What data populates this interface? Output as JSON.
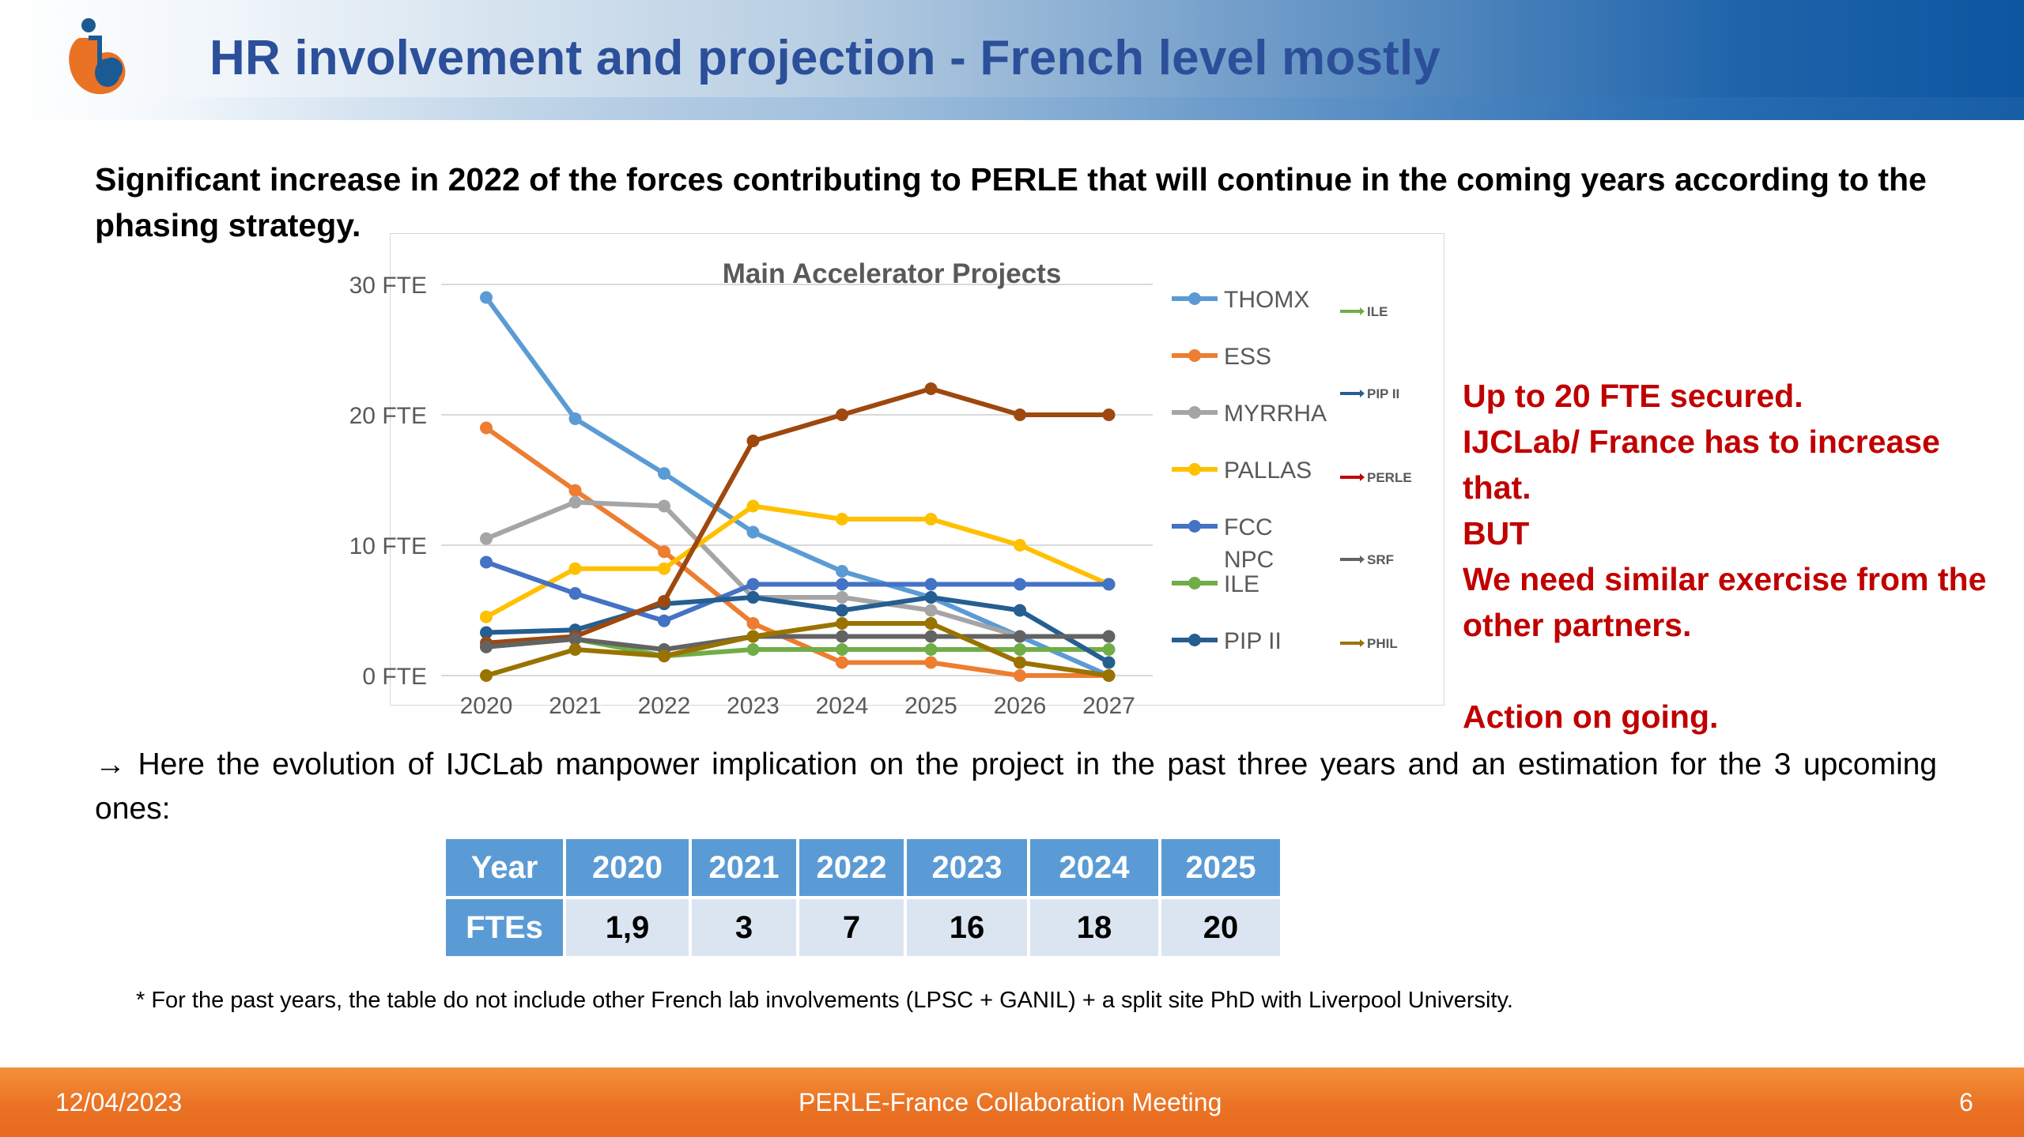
{
  "header": {
    "title": "HR involvement and projection  - French level mostly"
  },
  "intro_text": "Significant increase in 2022 of the forces contributing to PERLE that will continue in the coming years according to the phasing strategy.",
  "chart_data": {
    "type": "line",
    "title": "Main Accelerator Projects",
    "x": [
      "2020",
      "2021",
      "2022",
      "2023",
      "2024",
      "2025",
      "2026",
      "2027"
    ],
    "ylim": [
      0,
      30
    ],
    "yticks": [
      "0 FTE",
      "10 FTE",
      "20 FTE",
      "30 FTE"
    ],
    "grid": true,
    "legend_placement": "right",
    "series": [
      {
        "name": "THOMX",
        "color": "#5b9bd5",
        "values": [
          29,
          19.7,
          15.5,
          11,
          8,
          6,
          3,
          0
        ]
      },
      {
        "name": "ESS",
        "color": "#ed7d31",
        "values": [
          19,
          14.2,
          9.5,
          4,
          1,
          1,
          0,
          0
        ]
      },
      {
        "name": "MYRRHA",
        "color": "#a5a5a5",
        "values": [
          10.5,
          13.3,
          13,
          6,
          6,
          5,
          3,
          3
        ]
      },
      {
        "name": "PALLAS",
        "color": "#ffc000",
        "values": [
          4.5,
          8.2,
          8.2,
          13,
          12,
          12,
          10,
          7
        ]
      },
      {
        "name": "FCC",
        "color": "#4472c4",
        "values": [
          8.7,
          6.3,
          4.2,
          7,
          7,
          7,
          7,
          7
        ]
      },
      {
        "name": "NPC ILE",
        "color": "#70ad47",
        "values": [
          2.2,
          2.8,
          1.5,
          2,
          2,
          2,
          2,
          2
        ]
      },
      {
        "name": "PIP II",
        "color": "#255e91",
        "values": [
          3.3,
          3.5,
          5.5,
          6,
          5,
          6,
          5,
          1
        ]
      },
      {
        "name": "PERLE",
        "color": "#9e480e",
        "values": [
          2.5,
          3,
          5.7,
          18,
          20,
          22,
          20,
          20
        ]
      },
      {
        "name": "SRF",
        "color": "#636363",
        "values": [
          2.2,
          2.8,
          2,
          3,
          3,
          3,
          3,
          3
        ]
      },
      {
        "name": "PHIL",
        "color": "#997300",
        "values": [
          0,
          2,
          1.5,
          3,
          4,
          4,
          1,
          0
        ]
      }
    ],
    "legend_main": [
      "THOMX",
      "ESS",
      "MYRRHA",
      "PALLAS",
      "FCC",
      "NPC\nILE",
      "PIP II"
    ],
    "legend_extra": [
      {
        "name": "ILE",
        "color": "#70ad47"
      },
      {
        "name": "PIP II",
        "color": "#255e91"
      },
      {
        "name": "PERLE",
        "color": "#c00000"
      },
      {
        "name": "SRF",
        "color": "#636363"
      },
      {
        "name": "PHIL",
        "color": "#997300"
      }
    ]
  },
  "side_note": {
    "lines": [
      "Up to 20 FTE secured.",
      "IJCLab/ France has to increase",
      "that.",
      "BUT",
      "We need similar exercise from the",
      "other partners.",
      "",
      "Action on going."
    ]
  },
  "evolution_text": "→ Here the evolution of IJCLab manpower implication on the project in the past three years and an estimation for the 3 upcoming ones:",
  "fte_table": {
    "row_labels": [
      "Year",
      "FTEs"
    ],
    "years": [
      "2020",
      "2021",
      "2022",
      "2023",
      "2024",
      "2025"
    ],
    "ftes": [
      "1,9",
      "3",
      "7",
      "16",
      "18",
      "20"
    ]
  },
  "footnote": "* For the past years, the table do not include other French lab involvements (LPSC + GANIL) + a split site PhD with Liverpool University.",
  "footer": {
    "date": "12/04/2023",
    "meeting": "PERLE-France Collaboration Meeting",
    "page": "6"
  },
  "colors": {
    "title": "#2c4f9a",
    "accent_red": "#c00000",
    "table_header": "#5b9bd5",
    "table_cell": "#dbe5f2",
    "footer": "#ea7224"
  }
}
